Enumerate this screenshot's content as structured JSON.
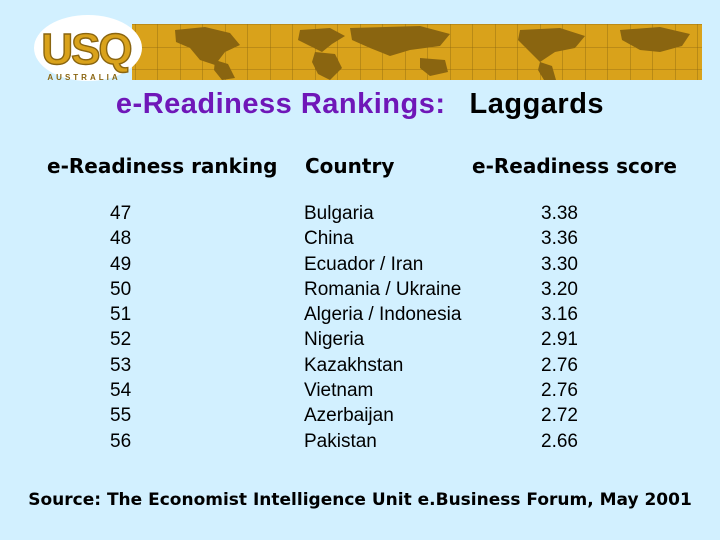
{
  "logo": {
    "name": "USQ",
    "subtitle": "AUSTRALIA"
  },
  "title": {
    "part1": "e-Readiness Rankings:",
    "part2": "Laggards"
  },
  "table": {
    "headers": {
      "ranking": "e-Readiness ranking",
      "country": "Country",
      "score": "e-Readiness score"
    },
    "rows": [
      {
        "rank": "47",
        "country": "Bulgaria",
        "score": "3.38"
      },
      {
        "rank": "48",
        "country": "China",
        "score": "3.36"
      },
      {
        "rank": "49",
        "country": "Ecuador / Iran",
        "score": "3.30"
      },
      {
        "rank": "50",
        "country": "Romania / Ukraine",
        "score": "3.20"
      },
      {
        "rank": "51",
        "country": "Algeria / Indonesia",
        "score": "3.16"
      },
      {
        "rank": "52",
        "country": "Nigeria",
        "score": "2.91"
      },
      {
        "rank": "53",
        "country": "Kazakhstan",
        "score": "2.76"
      },
      {
        "rank": "54",
        "country": "Vietnam",
        "score": "2.76"
      },
      {
        "rank": "55",
        "country": "Azerbaijan",
        "score": "2.72"
      },
      {
        "rank": "56",
        "country": "Pakistan",
        "score": "2.66"
      }
    ]
  },
  "source": "Source:  The Economist Intelligence Unit e.Business Forum, May 2001",
  "colors": {
    "background": "#D2F0FF",
    "title_purple": "#6F17B8",
    "banner_gold": "#D9A21B",
    "map_brown": "#8A6510"
  }
}
